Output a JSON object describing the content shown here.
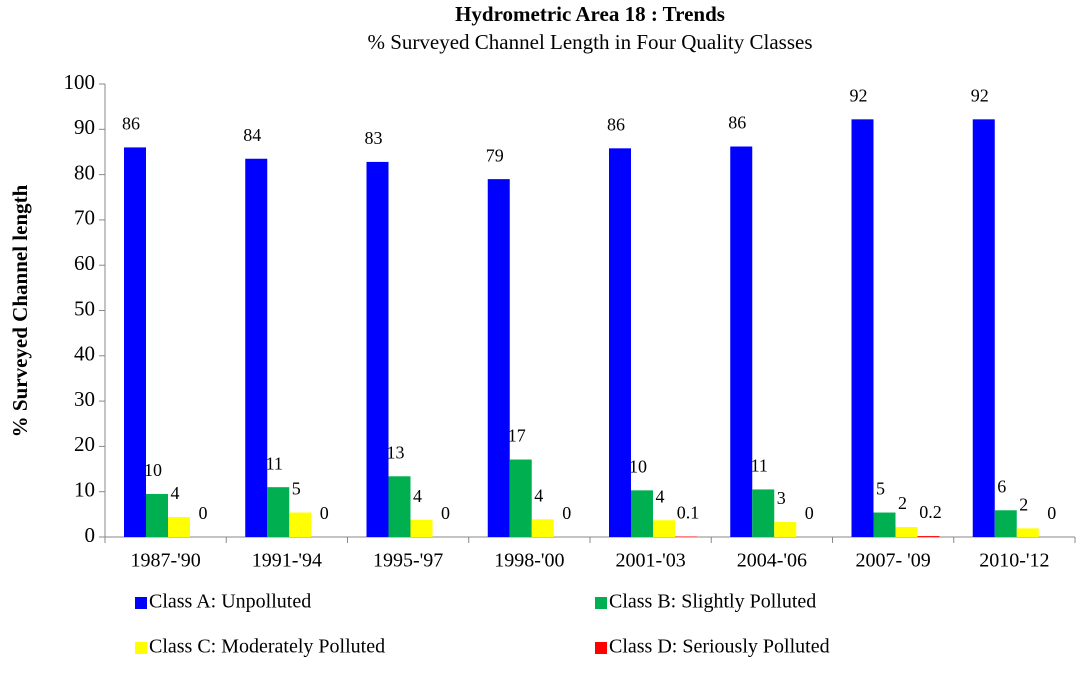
{
  "chart_data": {
    "type": "bar",
    "title": "Hydrometric Area 18 : Trends",
    "subtitle": "% Surveyed Channel Length in Four Quality Classes",
    "y_label": "% Surveyed Channel length",
    "categories": [
      "1987-'90",
      "1991-'94",
      "1995-'97",
      "1998-'00",
      "2001-'03",
      "2004-'06",
      "2007- '09",
      "2010-'12"
    ],
    "series": [
      {
        "name": "Class A: Unpolluted",
        "color": "#0000ff",
        "values": [
          86,
          83.5,
          82.8,
          79,
          85.8,
          86.2,
          92.2,
          92.2
        ],
        "value_labels": [
          "86",
          "84",
          "83",
          "79",
          "86",
          "86",
          "92",
          "92"
        ]
      },
      {
        "name": "Class B: Slightly Polluted",
        "color": "#00b050",
        "values": [
          9.5,
          11,
          13.4,
          17.1,
          10.3,
          10.5,
          5.4,
          5.9
        ],
        "value_labels": [
          "10",
          "11",
          "13",
          "17",
          "10",
          "11",
          "5",
          "6"
        ]
      },
      {
        "name": "Class C: Moderately Polluted",
        "color": "#ffff00",
        "values": [
          4.4,
          5.4,
          3.8,
          3.9,
          3.7,
          3.3,
          2.2,
          1.9
        ],
        "value_labels": [
          "4",
          "5",
          "4",
          "4",
          "4",
          "3",
          "2",
          "2"
        ]
      },
      {
        "name": "Class D: Seriously Polluted",
        "color": "#ff0000",
        "values": [
          0,
          0,
          0,
          0,
          0.1,
          0,
          0.2,
          0
        ],
        "value_labels": [
          "0",
          "0",
          "0",
          "0",
          "0.1",
          "0",
          "0.2",
          "0"
        ]
      }
    ],
    "ylim": [
      0,
      100
    ],
    "yticks": [
      0,
      10,
      20,
      30,
      40,
      50,
      60,
      70,
      80,
      90,
      100
    ]
  }
}
